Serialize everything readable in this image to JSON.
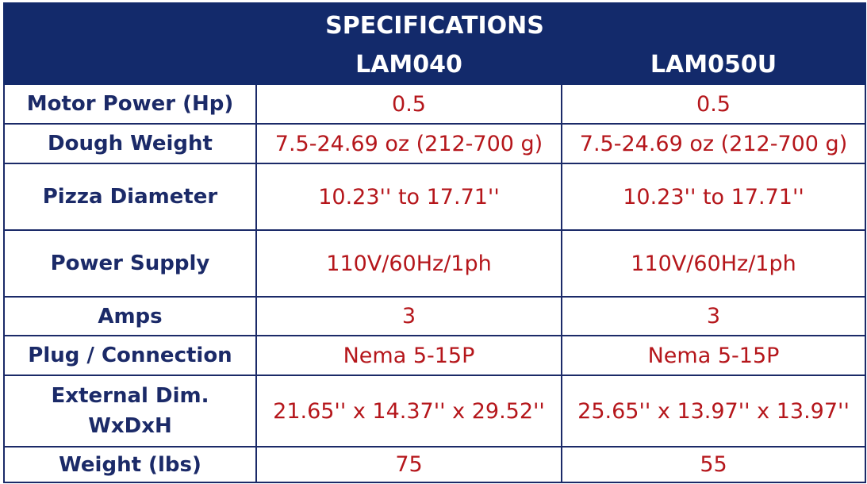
{
  "header": {
    "title": "SPECIFICATIONS",
    "columns": [
      "LAM040",
      "LAM050U"
    ]
  },
  "table": {
    "rows": [
      [
        "Motor Power (Hp)",
        "0.5",
        "0.5"
      ],
      [
        "Dough Weight",
        "7.5-24.69 oz (212-700 g)",
        "7.5-24.69 oz (212-700 g)"
      ],
      [
        "Pizza Diameter",
        "10.23'' to 17.71''",
        "10.23'' to 17.71''"
      ],
      [
        "Power Supply",
        "110V/60Hz/1ph",
        "110V/60Hz/1ph"
      ],
      [
        "Amps",
        "3",
        "3"
      ],
      [
        "Plug / Connection",
        "Nema 5-15P",
        "Nema 5-15P"
      ],
      [
        "External Dim.\nWxDxH",
        "21.65'' x 14.37'' x 29.52''",
        "25.65'' x 13.97'' x 13.97''"
      ],
      [
        "Weight (lbs)",
        "75",
        "55"
      ]
    ]
  }
}
